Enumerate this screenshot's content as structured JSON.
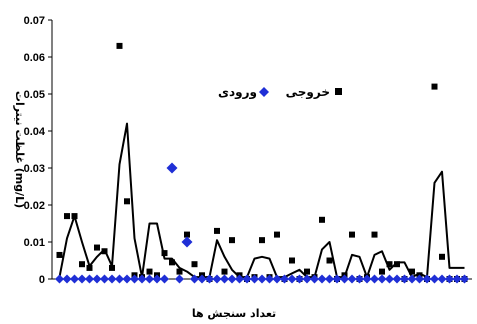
{
  "chart_data": {
    "type": "scatter",
    "xlabel": "تعداد سنجش ها",
    "ylabel": "غلظت نیترات (mg/L)",
    "ylim": [
      0,
      0.07
    ],
    "yticks": [
      "0",
      "0.01",
      "0.02",
      "0.03",
      "0.04",
      "0.05",
      "0.06",
      "0.07"
    ],
    "xlim": [
      0,
      56
    ],
    "legend": {
      "placement": "center"
    },
    "series": [
      {
        "name": "ورودی",
        "marker": "diamond",
        "color": "#1f2fd6",
        "x": [
          1,
          2,
          3,
          4,
          5,
          6,
          7,
          8,
          9,
          10,
          11,
          12,
          13,
          14,
          15,
          16,
          17,
          18,
          19,
          20,
          21,
          22,
          23,
          24,
          25,
          26,
          27,
          28,
          29,
          30,
          31,
          32,
          33,
          34,
          35,
          36,
          37,
          38,
          39,
          40,
          41,
          42,
          43,
          44,
          45,
          46,
          47,
          48,
          49,
          50,
          51,
          52,
          53,
          54,
          55
        ],
        "values": [
          0,
          0,
          0,
          0,
          0,
          0,
          0,
          0,
          0,
          0,
          0,
          0,
          0,
          0,
          0,
          0.03,
          0,
          0.01,
          0,
          0,
          0,
          0,
          0,
          0,
          0,
          0,
          0,
          0,
          0,
          0,
          0,
          0,
          0,
          0,
          0,
          0,
          0,
          0,
          0,
          0,
          0,
          0,
          0,
          0,
          0,
          0,
          0,
          0,
          0,
          0,
          0,
          0,
          0,
          0,
          0
        ]
      },
      {
        "name": "خروجی",
        "marker": "square",
        "color": "#000000",
        "x": [
          1,
          2,
          3,
          4,
          5,
          6,
          7,
          8,
          9,
          10,
          11,
          12,
          13,
          14,
          15,
          16,
          17,
          18,
          19,
          20,
          21,
          22,
          23,
          24,
          25,
          26,
          27,
          28,
          29,
          30,
          31,
          32,
          33,
          34,
          35,
          36,
          37,
          38,
          39,
          40,
          41,
          42,
          43,
          44,
          45,
          46,
          47,
          48,
          49,
          50,
          51,
          52,
          53,
          54,
          55
        ],
        "values": [
          0.0065,
          0.017,
          0.017,
          0.004,
          0.003,
          0.0085,
          0.0075,
          0.003,
          0.063,
          0.021,
          0.001,
          0.0005,
          0.002,
          0.001,
          0.007,
          0.0045,
          0.002,
          0.012,
          0.004,
          0.001,
          0,
          0.013,
          0.002,
          0.0105,
          0.001,
          0,
          0.0005,
          0.0105,
          0.0005,
          0.012,
          0,
          0.005,
          0,
          0.002,
          0.0005,
          0.016,
          0.005,
          0,
          0.001,
          0.012,
          0,
          0.0005,
          0.012,
          0.002,
          0.004,
          0.004,
          0,
          0.002,
          0.001,
          0,
          0.052,
          0.006,
          0,
          0,
          0
        ]
      }
    ],
    "trend_line": {
      "x": [
        1,
        2,
        3,
        4,
        5,
        6,
        7,
        8,
        9,
        10,
        11,
        12,
        13,
        14,
        15,
        16,
        17,
        18,
        19,
        20,
        21,
        22,
        23,
        24,
        25,
        26,
        27,
        28,
        29,
        30,
        31,
        32,
        33,
        34,
        35,
        36,
        37,
        38,
        39,
        40,
        41,
        42,
        43,
        44,
        45,
        46,
        47,
        48,
        49,
        50,
        51,
        52,
        53,
        54,
        55
      ],
      "values": [
        0.0005,
        0.011,
        0.017,
        0.01,
        0.0035,
        0.006,
        0.008,
        0.0035,
        0.031,
        0.042,
        0.011,
        0.0005,
        0.015,
        0.015,
        0.0055,
        0.0055,
        0.003,
        0.002,
        0.0005,
        0.0005,
        0.0005,
        0.0105,
        0.006,
        0.0025,
        0.0005,
        0.0005,
        0.0055,
        0.006,
        0.0055,
        0.0005,
        0.0005,
        0.0015,
        0.0025,
        0.0005,
        0.0005,
        0.008,
        0.01,
        0.0005,
        0.0005,
        0.0065,
        0.006,
        0.0005,
        0.0065,
        0.0075,
        0.0025,
        0.0045,
        0.0045,
        0.0005,
        0.0015,
        0.0005,
        0.026,
        0.029,
        0.003,
        0.003,
        0.003
      ]
    }
  }
}
